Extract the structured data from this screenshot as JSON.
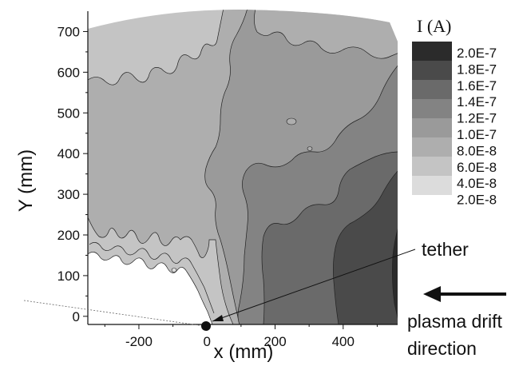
{
  "chart_data": {
    "type": "heatmap",
    "subtype": "filled-contour",
    "xlabel": "x (mm)",
    "ylabel": "Y (mm)",
    "xlim": [
      -350,
      560
    ],
    "ylim": [
      -20,
      750
    ],
    "x_ticks": [
      -200,
      0,
      200,
      400
    ],
    "y_ticks": [
      0,
      100,
      200,
      300,
      400,
      500,
      600,
      700
    ],
    "legend": {
      "title": "I (A)",
      "placement": "right",
      "levels": [
        "2.0E-7",
        "1.8E-7",
        "1.6E-7",
        "1.4E-7",
        "1.2E-7",
        "1.0E-7",
        "8.0E-8",
        "6.0E-8",
        "4.0E-8",
        "2.0E-8"
      ],
      "colors": [
        "#2b2b2b",
        "#4a4a4a",
        "#6a6a6a",
        "#838383",
        "#9a9a9a",
        "#aeaeae",
        "#c4c4c4",
        "#dcdcdc"
      ]
    },
    "annotations": [
      {
        "text": "tether",
        "x": 0,
        "y": -20
      },
      {
        "text": "plasma drift",
        "line2": "direction"
      }
    ],
    "grid": false
  },
  "colors": {
    "band_lightest": "#dcdcdc",
    "band_light": "#c4c4c4",
    "band_mid_light": "#aeaeae",
    "band_mid": "#9a9a9a",
    "band_mid_dark": "#838383",
    "band_dark": "#6a6a6a",
    "band_darker": "#4a4a4a",
    "band_darkest": "#2b2b2b"
  }
}
